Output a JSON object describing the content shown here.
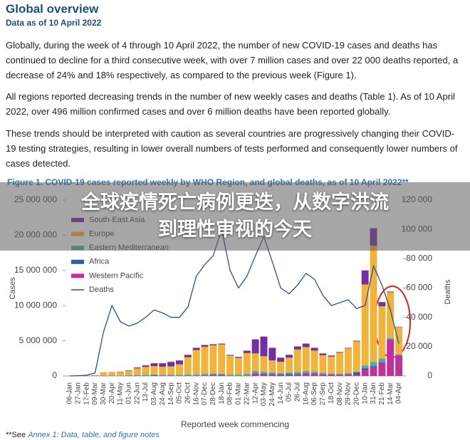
{
  "document": {
    "title": "Global overview",
    "subtitle": "Data as of 10 April 2022",
    "paragraphs": [
      "Globally, during the week of 4 through 10 April 2022, the number of new COVID-19 cases and deaths has continued to decline for a third consecutive week, with over 7 million cases and over 22 000 deaths reported, a decrease of 24% and 18% respectively, as compared to the previous week (Figure 1).",
      "All regions reported decreasing trends in the number of new weekly cases and deaths (Table 1). As of 10 April 2022, over 496 million confirmed cases and over 6 million deaths have been reported globally.",
      "These trends should be interpreted with caution as several countries are progressively changing their COVID-19 testing strategies, resulting in lower overall numbers of tests performed and consequently lower numbers of cases detected."
    ],
    "footnote_prefix": "**See ",
    "footnote_link": "Annex 1: Data, table, and figure notes",
    "banner_lines": [
      "全球疫情死亡病例更迭，从数字洪流",
      "到理性审视的今天"
    ]
  },
  "chart_data": {
    "type": "bar",
    "title": "Figure 1. COVID-19 cases reported weekly by WHO Region, and global deaths, as of 10 April 2022**",
    "xlabel": "Reported week commencing",
    "ylabel": "Cases",
    "y2label": "Deaths",
    "categories": [
      "06-Jan",
      "27-Jan",
      "17-Feb",
      "09-Mar",
      "30-Mar",
      "20-Apr",
      "11-May",
      "01-Jun",
      "22-Jun",
      "13-Jul",
      "03-Aug",
      "24-Aug",
      "14-Sep",
      "05-Oct",
      "26-Oct",
      "16-Nov",
      "07-Dec",
      "28-Dec",
      "18-Jan",
      "08-Feb",
      "01-Mar",
      "22-Mar",
      "12-Apr",
      "03-May",
      "24-May",
      "14-Jun",
      "05-Jul",
      "26-Jul",
      "16-Aug",
      "06-Sep",
      "27-Sep",
      "18-Oct",
      "08-Nov",
      "29-Nov",
      "20-Dec",
      "10-Jan",
      "31-Jan",
      "21-Feb",
      "14-Mar",
      "04-Apr"
    ],
    "series": [
      {
        "name": "South-East Asia",
        "color": "#7030a0",
        "values": [
          0,
          0,
          0,
          0,
          10000,
          20000,
          40000,
          70000,
          130000,
          220000,
          400000,
          500000,
          650000,
          550000,
          350000,
          320000,
          250000,
          150000,
          120000,
          100000,
          150000,
          350000,
          2000000,
          2800000,
          1800000,
          600000,
          400000,
          450000,
          500000,
          400000,
          250000,
          150000,
          100000,
          80000,
          100000,
          2000000,
          2500000,
          600000,
          100000,
          50000
        ]
      },
      {
        "name": "Europe",
        "color": "#f0b43c",
        "values": [
          0,
          0,
          0,
          40000,
          470000,
          480000,
          500000,
          620000,
          940000,
          1110000,
          1200000,
          1150000,
          1200000,
          1500000,
          2450000,
          3450000,
          3850000,
          4000000,
          4150000,
          2700000,
          2350000,
          2950000,
          2500000,
          2200000,
          1700000,
          1600000,
          2100000,
          3200000,
          3400000,
          3000000,
          2500000,
          2400000,
          3000000,
          3550000,
          4300000,
          11500000,
          16500000,
          7400000,
          6500000,
          3900000
        ]
      },
      {
        "name": "Eastern Mediterranean",
        "color": "#5aaa94",
        "values": [
          0,
          0,
          0,
          10000,
          20000,
          30000,
          40000,
          70000,
          90000,
          100000,
          100000,
          90000,
          100000,
          110000,
          150000,
          170000,
          200000,
          150000,
          150000,
          130000,
          170000,
          250000,
          350000,
          300000,
          250000,
          200000,
          250000,
          300000,
          300000,
          250000,
          180000,
          120000,
          100000,
          80000,
          100000,
          400000,
          600000,
          500000,
          200000,
          100000
        ]
      },
      {
        "name": "Africa",
        "color": "#2e5fa8",
        "values": [
          0,
          0,
          0,
          0,
          2000,
          5000,
          8000,
          15000,
          30000,
          50000,
          60000,
          30000,
          20000,
          20000,
          20000,
          20000,
          30000,
          80000,
          80000,
          40000,
          20000,
          30000,
          50000,
          50000,
          50000,
          100000,
          150000,
          100000,
          80000,
          50000,
          30000,
          20000,
          20000,
          100000,
          300000,
          300000,
          200000,
          100000,
          50000,
          50000
        ]
      },
      {
        "name": "Western Pacific",
        "color": "#c0309a",
        "values": [
          0,
          10000,
          30000,
          50000,
          20000,
          15000,
          12000,
          25000,
          10000,
          20000,
          40000,
          30000,
          30000,
          20000,
          30000,
          40000,
          70000,
          120000,
          100000,
          30000,
          10000,
          20000,
          300000,
          250000,
          200000,
          100000,
          100000,
          150000,
          320000,
          300000,
          240000,
          210000,
          180000,
          190000,
          200000,
          800000,
          1200000,
          1900000,
          5150000,
          2900000
        ]
      },
      {
        "name": "Deaths",
        "color": "#2f4f8f",
        "type": "line",
        "axis": "y2",
        "values": [
          0,
          200,
          500,
          2000,
          30000,
          48000,
          37000,
          34000,
          36000,
          40000,
          45000,
          43000,
          40000,
          40000,
          47000,
          68000,
          76000,
          82000,
          100000,
          72000,
          60000,
          68000,
          82000,
          95000,
          78000,
          60000,
          56000,
          62000,
          70000,
          66000,
          55000,
          48000,
          50000,
          52000,
          46000,
          48000,
          75000,
          62000,
          45000,
          22000
        ]
      }
    ],
    "ylim": [
      0,
      25000000
    ],
    "yticks": [
      0,
      {
        "value": 5000000,
        "label": "5 000 000"
      },
      {
        "value": 10000000,
        "label": "10 000 000"
      },
      {
        "value": 15000000,
        "label": "15 000 000"
      },
      {
        "value": 20000000,
        "label": "20 000 000"
      },
      {
        "value": 25000000,
        "label": "25 000 000"
      }
    ],
    "y2lim": [
      0,
      120000
    ],
    "y2ticks": [
      0,
      {
        "value": 20000,
        "label": "20 000"
      },
      {
        "value": 40000,
        "label": "40 000"
      },
      {
        "value": 60000,
        "label": "60 000"
      },
      {
        "value": 80000,
        "label": "80 000"
      },
      {
        "value": 100000,
        "label": "100 000"
      },
      {
        "value": 120000,
        "label": "120 000"
      }
    ],
    "stacked": true
  }
}
